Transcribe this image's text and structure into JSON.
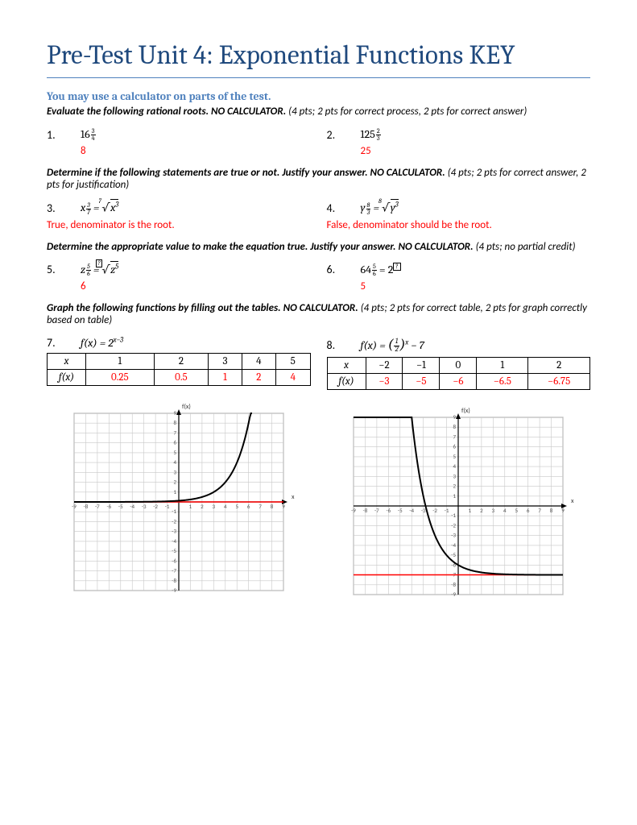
{
  "title": "Pre-Test Unit 4: Exponential Functions KEY",
  "subtitle": "You may use a calculator on parts of the test.",
  "section1": {
    "instr_pre": "Evaluate the following rational roots. ",
    "instr_bold": "NO CALCULATOR.",
    "instr_post": "  (4 pts; 2 pts for correct process, 2 pts for correct answer)",
    "q1": {
      "num": "1.",
      "base": "16",
      "exp_n": "3",
      "exp_d": "4",
      "ans": "8"
    },
    "q2": {
      "num": "2.",
      "base": "125",
      "exp_n": "2",
      "exp_d": "3",
      "ans": "25"
    }
  },
  "section2": {
    "instr_pre": "Determine if the following statements are true or not.  Justify your answer. ",
    "instr_bold": "NO CALCULATOR.",
    "instr_post": "  (4 pts; 2 pts for correct answer, 2 pts for justification)",
    "q3": {
      "num": "3.",
      "var": "x",
      "exp_n": "3",
      "exp_d": "7",
      "root_idx": "7",
      "root_pow": "3",
      "ans": "True, denominator is the root."
    },
    "q4": {
      "num": "4.",
      "var": "y",
      "exp_n": "8",
      "exp_d": "3",
      "root_idx": "8",
      "root_pow": "3",
      "ans": "False, denominator should be the root."
    }
  },
  "section3": {
    "instr_pre": "Determine the appropriate value to make the equation true. Justify your answer. ",
    "instr_bold": "NO CALCULATOR.",
    "instr_post": "  (4 pts; no partial credit)",
    "q5": {
      "num": "5.",
      "var": "z",
      "exp_n": "5",
      "exp_d": "6",
      "root_pow": "5",
      "ans": "6",
      "box_idx": "?"
    },
    "q6": {
      "num": "6.",
      "base": "64",
      "exp_n": "5",
      "exp_d": "6",
      "rhs_base": "2",
      "ans": "5",
      "box_sup": "?"
    }
  },
  "section4": {
    "instr_pre": "Graph the following functions by filling out the tables. ",
    "instr_bold": "NO CALCULATOR.",
    "instr_post": "  (4 pts; 2 pts for correct table, 2 pts for graph correctly based on table)",
    "q7": {
      "num": "7.",
      "fn_plain": "f(x) = 2",
      "fn_sup": "x−3",
      "xlabel": "x",
      "flabel": "f(x)",
      "xs": [
        "1",
        "2",
        "3",
        "4",
        "5"
      ],
      "ys": [
        "0.25",
        "0.5",
        "1",
        "2",
        "4"
      ],
      "curve_type": "exp_up"
    },
    "q8": {
      "num": "8.",
      "xlabel": "x",
      "flabel": "f(x)",
      "xs": [
        "−2",
        "−1",
        "0",
        "1",
        "2"
      ],
      "ys": [
        "−3",
        "−5",
        "−6",
        "−6.5",
        "−6.75"
      ],
      "curve_type": "exp_down"
    }
  },
  "grid": {
    "range": [
      -9,
      9
    ],
    "grid_color": "#c8c8c8",
    "axis_color": "#888",
    "asymptote_color": "#ff0000",
    "curve_color": "#000",
    "label_fontsize": 7,
    "ylabel": "f(x)",
    "xlabel": "x"
  }
}
